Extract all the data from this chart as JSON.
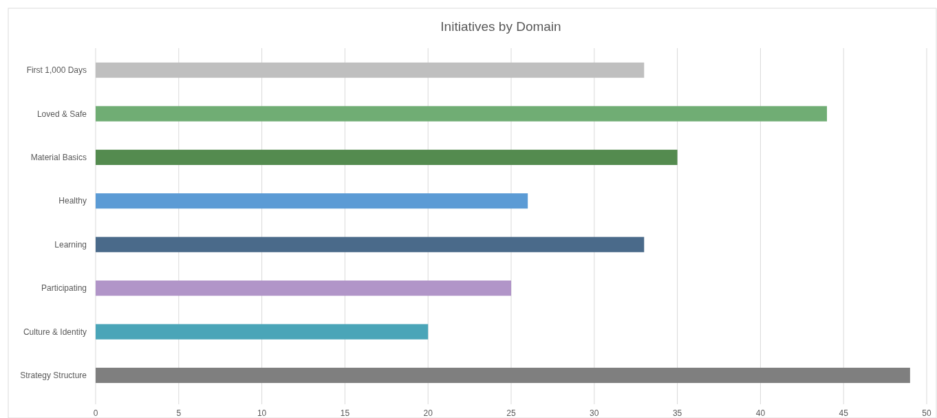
{
  "chart_data": {
    "type": "bar",
    "orientation": "horizontal",
    "title": "Initiatives by Domain",
    "categories": [
      "First 1,000 Days",
      "Loved & Safe",
      "Material Basics",
      "Healthy",
      "Learning",
      "Participating",
      "Culture & Identity",
      "Strategy Structure"
    ],
    "values": [
      33,
      44,
      35,
      26,
      33,
      25,
      20,
      49
    ],
    "colors": [
      "#bfbfbf",
      "#70ad74",
      "#548b4f",
      "#5b9bd5",
      "#4a6a8a",
      "#b195c8",
      "#4aa5b8",
      "#7f7f7f"
    ],
    "xlim": [
      0,
      50
    ],
    "xticks": [
      0,
      5,
      10,
      15,
      20,
      25,
      30,
      35,
      40,
      45,
      50
    ],
    "grid": "x"
  }
}
